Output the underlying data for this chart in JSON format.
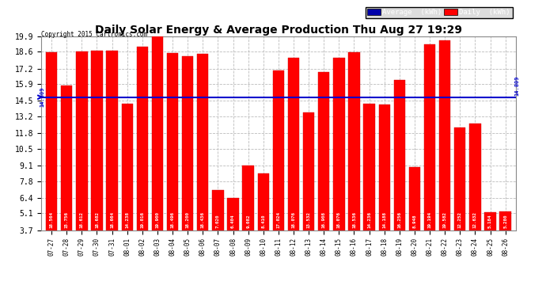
{
  "title": "Daily Solar Energy & Average Production Thu Aug 27 19:29",
  "copyright": "Copyright 2015 Cartronics.com",
  "average_value": 14.809,
  "bar_color": "#FF0000",
  "average_line_color": "#0000CC",
  "background_color": "#FFFFFF",
  "plot_bg_color": "#FFFFFF",
  "categories": [
    "07-27",
    "07-28",
    "07-29",
    "07-30",
    "07-31",
    "08-01",
    "08-02",
    "08-03",
    "08-04",
    "08-05",
    "08-06",
    "08-07",
    "08-08",
    "08-09",
    "08-10",
    "08-11",
    "08-12",
    "08-13",
    "08-14",
    "08-15",
    "08-16",
    "08-17",
    "08-18",
    "08-19",
    "08-20",
    "08-21",
    "08-22",
    "08-23",
    "08-24",
    "08-25",
    "08-26"
  ],
  "values": [
    18.564,
    15.756,
    18.612,
    18.682,
    18.664,
    14.238,
    19.016,
    19.9,
    18.496,
    18.2,
    18.436,
    7.02,
    6.404,
    9.082,
    8.41,
    17.024,
    18.076,
    13.532,
    16.908,
    18.076,
    18.536,
    14.236,
    14.188,
    16.256,
    8.948,
    19.194,
    19.582,
    12.252,
    12.632,
    5.184,
    5.28
  ],
  "ylim_min": 3.7,
  "ylim_max": 19.9,
  "yticks": [
    3.7,
    5.1,
    6.4,
    7.8,
    9.1,
    10.5,
    11.8,
    13.2,
    14.5,
    15.9,
    17.2,
    18.6,
    19.9
  ],
  "legend_avg_color": "#0000AA",
  "legend_daily_color": "#FF0000",
  "grid_color": "#BBBBBB",
  "bar_edge_color": "#CC0000"
}
